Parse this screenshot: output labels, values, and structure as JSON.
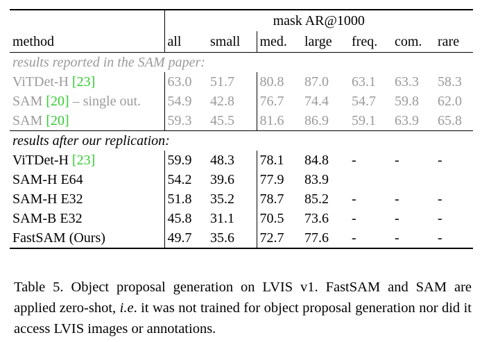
{
  "table": {
    "group_header": "mask AR@1000",
    "method_header": "method",
    "columns": [
      "all",
      "small",
      "med.",
      "large",
      "freq.",
      "com.",
      "rare"
    ],
    "section_sam": "results reported in the SAM paper:",
    "section_ours": "results after our replication:",
    "rows_sam": [
      {
        "name": "ViTDet-H ",
        "cite": "[23]",
        "suffix": "",
        "values": [
          "63.0",
          "51.7",
          "80.8",
          "87.0",
          "63.1",
          "63.3",
          "58.3"
        ]
      },
      {
        "name": "SAM ",
        "cite": "[20]",
        "suffix": " – single out.",
        "values": [
          "54.9",
          "42.8",
          "76.7",
          "74.4",
          "54.7",
          "59.8",
          "62.0"
        ]
      },
      {
        "name": "SAM ",
        "cite": "[20]",
        "suffix": "",
        "values": [
          "59.3",
          "45.5",
          "81.6",
          "86.9",
          "59.1",
          "63.9",
          "65.8"
        ]
      }
    ],
    "rows_ours": [
      {
        "name": "ViTDet-H ",
        "cite": "[23]",
        "suffix": "",
        "values": [
          "59.9",
          "48.3",
          "78.1",
          "84.8",
          "-",
          "-",
          "-"
        ]
      },
      {
        "name": "SAM-H E64",
        "cite": "",
        "suffix": "",
        "values": [
          "54.2",
          "39.6",
          "77.9",
          "83.9",
          "",
          "",
          ""
        ]
      },
      {
        "name": "SAM-H E32",
        "cite": "",
        "suffix": "",
        "values": [
          "51.8",
          "35.2",
          "78.7",
          "85.2",
          "-",
          "-",
          "-"
        ]
      },
      {
        "name": "SAM-B E32",
        "cite": "",
        "suffix": "",
        "values": [
          "45.8",
          "31.1",
          "70.5",
          "73.6",
          "-",
          "-",
          "-"
        ]
      },
      {
        "name": "FastSAM (Ours)",
        "cite": "",
        "suffix": "",
        "values": [
          "49.7",
          "35.6",
          "72.7",
          "77.6",
          "-",
          "-",
          "-"
        ]
      }
    ],
    "colors": {
      "reported_text": "#9a9a9a",
      "citation": "#33cc33"
    }
  },
  "caption": {
    "label": "Table 5.",
    "text_1": " Object proposal generation on LVIS v1. FastSAM and SAM are applied zero-shot, ",
    "text_ie": "i.e",
    "text_2": ". it was not trained for object proposal generation nor did it access LVIS images or annotations."
  }
}
